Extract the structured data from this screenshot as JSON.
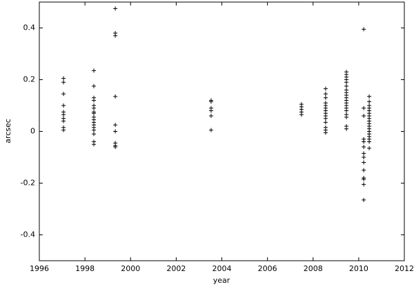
{
  "chart_data": {
    "type": "scatter",
    "x_label": "year",
    "y_label": "arcsec",
    "color": "#000000",
    "x": [
      1997.06,
      1997.06,
      1997.06,
      1997.06,
      1997.06,
      1997.06,
      1997.06,
      1997.06,
      1997.06,
      1997.06,
      1998.39,
      1998.39,
      1998.39,
      1998.39,
      1998.39,
      1998.39,
      1998.39,
      1998.39,
      1998.39,
      1998.39,
      1998.39,
      1998.39,
      1998.39,
      1998.39,
      1998.39,
      1998.39,
      1998.39,
      1999.33,
      1999.33,
      1999.33,
      1999.33,
      1999.33,
      1999.33,
      1999.33,
      1999.33,
      1999.33,
      2003.53,
      2003.53,
      2003.53,
      2003.53,
      2003.53,
      2003.53,
      2007.49,
      2007.49,
      2007.49,
      2007.49,
      2007.49,
      2008.55,
      2008.55,
      2008.55,
      2008.55,
      2008.55,
      2008.55,
      2008.55,
      2008.55,
      2008.55,
      2008.55,
      2008.55,
      2008.55,
      2008.55,
      2008.55,
      2009.46,
      2009.46,
      2009.46,
      2009.46,
      2009.46,
      2009.46,
      2009.46,
      2009.46,
      2009.46,
      2009.46,
      2009.46,
      2009.46,
      2009.46,
      2009.46,
      2009.46,
      2009.46,
      2009.46,
      2009.46,
      2009.46,
      2010.22,
      2010.22,
      2010.22,
      2010.22,
      2010.22,
      2010.22,
      2010.22,
      2010.22,
      2010.22,
      2010.22,
      2010.22,
      2010.22,
      2010.22,
      2010.22,
      2010.46,
      2010.46,
      2010.46,
      2010.46,
      2010.46,
      2010.46,
      2010.46,
      2010.46,
      2010.46,
      2010.46,
      2010.46,
      2010.46,
      2010.46,
      2010.46,
      2010.46,
      2010.46,
      2010.46,
      2010.46
    ],
    "values": [
      0.205,
      0.19,
      0.145,
      0.1,
      0.075,
      0.065,
      0.05,
      0.04,
      0.015,
      0.005,
      0.235,
      0.175,
      0.13,
      0.12,
      0.1,
      0.09,
      0.075,
      0.07,
      0.055,
      0.045,
      0.035,
      0.025,
      0.015,
      0.005,
      -0.01,
      -0.04,
      -0.05,
      0.475,
      0.38,
      0.37,
      0.135,
      0.025,
      0,
      -0.045,
      -0.055,
      -0.06,
      0.12,
      0.115,
      0.09,
      0.08,
      0.06,
      0.005,
      0.105,
      0.095,
      0.085,
      0.075,
      0.065,
      0.165,
      0.145,
      0.13,
      0.11,
      0.1,
      0.09,
      0.08,
      0.07,
      0.06,
      0.05,
      0.035,
      0.015,
      0.005,
      -0.005,
      0.23,
      0.22,
      0.21,
      0.2,
      0.19,
      0.175,
      0.16,
      0.15,
      0.14,
      0.13,
      0.12,
      0.11,
      0.1,
      0.09,
      0.08,
      0.065,
      0.055,
      0.02,
      0.01,
      0.395,
      0.09,
      0.06,
      -0.03,
      -0.04,
      -0.06,
      -0.085,
      -0.1,
      -0.12,
      -0.15,
      -0.18,
      -0.185,
      -0.205,
      -0.265,
      0.135,
      0.115,
      0.1,
      0.09,
      0.08,
      0.07,
      0.06,
      0.05,
      0.04,
      0.03,
      0.02,
      0.01,
      0,
      -0.01,
      -0.02,
      -0.03,
      -0.04,
      -0.065
    ],
    "xlim": [
      1996,
      2012
    ],
    "xticks": [
      1996,
      1998,
      2000,
      2002,
      2004,
      2006,
      2008,
      2010,
      2012
    ],
    "ylim": [
      -0.5,
      0.5
    ],
    "yticks": [
      -0.4,
      -0.2,
      0,
      0.2,
      0.4
    ]
  }
}
